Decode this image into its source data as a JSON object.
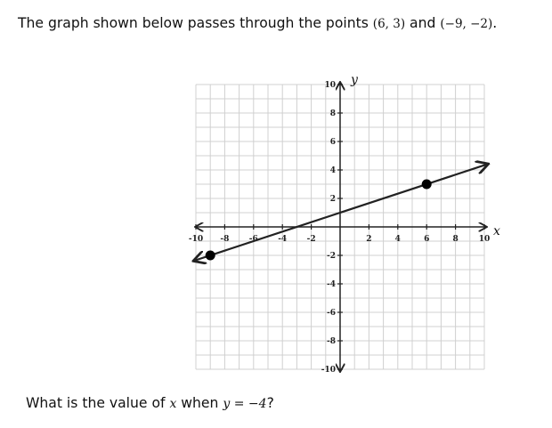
{
  "question": {
    "intro": "The graph shown below passes through the points ",
    "point1": "(6, 3)",
    "and": " and ",
    "point2": "(−9, −2)",
    "period": ".",
    "ask_prefix": "What is the value of ",
    "ask_var_x": "x",
    "ask_when": " when ",
    "ask_eq": "y = −4",
    "ask_suffix": "?"
  },
  "chart_data": {
    "type": "line",
    "xlabel": "x",
    "ylabel": "y",
    "xlim": [
      -10,
      10
    ],
    "ylim": [
      -10,
      10
    ],
    "grid": true,
    "grid_step": 1,
    "x_tick_labels": [
      "-10",
      "-8",
      "-6",
      "-4",
      "-2",
      "2",
      "4",
      "6",
      "8",
      "10"
    ],
    "y_tick_labels": [
      "10",
      "8",
      "6",
      "4",
      "2",
      "-2",
      "-4",
      "-6",
      "-8",
      "-10"
    ],
    "x_ticks": [
      -10,
      -8,
      -6,
      -4,
      -2,
      2,
      4,
      6,
      8,
      10
    ],
    "y_ticks": [
      10,
      8,
      6,
      4,
      2,
      -2,
      -4,
      -6,
      -8,
      -10
    ],
    "line": {
      "slope": 0.3333,
      "intercept": 1,
      "x_range": [
        -10.1,
        10.2
      ],
      "arrows": "both"
    },
    "points": [
      {
        "x": 6,
        "y": 3
      },
      {
        "x": -9,
        "y": -2
      }
    ],
    "colors": {
      "grid": "#d0d0d0",
      "axis": "#222222",
      "line": "#222222"
    }
  }
}
